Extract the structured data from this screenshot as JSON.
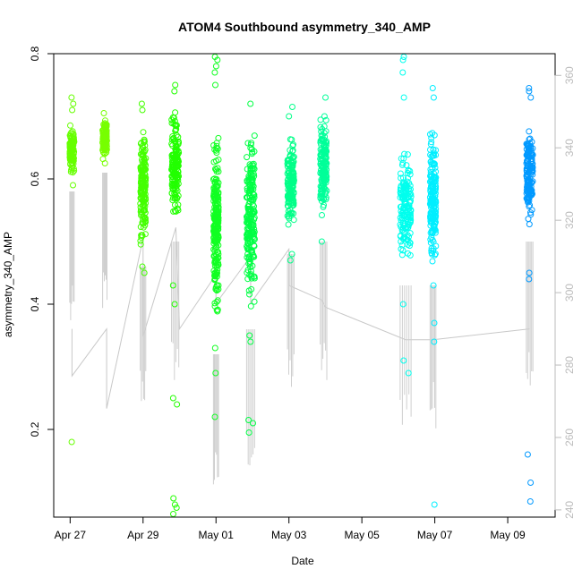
{
  "chart_data": {
    "type": "scatter",
    "title": "ATOM4 Southbound asymmetry_340_AMP",
    "xlabel": "Date",
    "ylabel": "asymmetry_340_AMP",
    "x_unit": "days since Apr 27 00:00",
    "xlim": [
      -0.45,
      13.3
    ],
    "ylim": [
      0.06,
      0.8
    ],
    "y2lim": [
      238,
      366
    ],
    "x_ticks": [
      {
        "value": 0,
        "label": "Apr 27"
      },
      {
        "value": 2,
        "label": "Apr 29"
      },
      {
        "value": 4,
        "label": "May 01"
      },
      {
        "value": 6,
        "label": "May 03"
      },
      {
        "value": 8,
        "label": "May 05"
      },
      {
        "value": 10,
        "label": "May 07"
      },
      {
        "value": 12,
        "label": "May 09"
      }
    ],
    "y_ticks": [
      {
        "value": 0.2,
        "label": "0.2"
      },
      {
        "value": 0.4,
        "label": "0.4"
      },
      {
        "value": 0.6,
        "label": "0.6"
      },
      {
        "value": 0.8,
        "label": "0.8"
      }
    ],
    "y2_ticks": [
      {
        "value": 240,
        "label": "240"
      },
      {
        "value": 260,
        "label": "260"
      },
      {
        "value": 280,
        "label": "280"
      },
      {
        "value": 300,
        "label": "300"
      },
      {
        "value": 320,
        "label": "320"
      },
      {
        "value": 340,
        "label": "340"
      },
      {
        "value": 360,
        "label": "360"
      }
    ],
    "clusters": [
      {
        "x": 0.05,
        "width": 0.12,
        "core": [
          0.6,
          0.69
        ],
        "extremes": [
          0.73,
          0.72,
          0.71,
          0.59,
          0.18
        ],
        "color": "#66ff00"
      },
      {
        "x": 0.95,
        "width": 0.12,
        "core": [
          0.63,
          0.7
        ],
        "extremes": [
          0.705,
          0.625
        ],
        "color": "#77ff00"
      },
      {
        "x": 2.0,
        "width": 0.15,
        "core": [
          0.48,
          0.7
        ],
        "extremes": [
          0.72,
          0.71,
          0.46,
          0.45
        ],
        "color": "#44ff00"
      },
      {
        "x": 2.88,
        "width": 0.2,
        "core": [
          0.52,
          0.72
        ],
        "extremes": [
          0.75,
          0.74,
          0.43,
          0.4,
          0.25,
          0.24,
          0.09,
          0.08,
          0.075,
          0.065
        ],
        "color": "#22ff00"
      },
      {
        "x": 4.0,
        "width": 0.14,
        "core": [
          0.34,
          0.7
        ],
        "extremes": [
          0.795,
          0.79,
          0.78,
          0.77,
          0.75,
          0.33,
          0.29,
          0.22
        ],
        "color": "#11ff22"
      },
      {
        "x": 4.95,
        "width": 0.22,
        "core": [
          0.38,
          0.7
        ],
        "extremes": [
          0.72,
          0.35,
          0.34,
          0.215,
          0.21,
          0.195
        ],
        "color": "#00ff44"
      },
      {
        "x": 6.05,
        "width": 0.18,
        "core": [
          0.5,
          0.69
        ],
        "extremes": [
          0.715,
          0.7,
          0.48,
          0.47
        ],
        "color": "#00ff88"
      },
      {
        "x": 6.95,
        "width": 0.18,
        "core": [
          0.52,
          0.72
        ],
        "extremes": [
          0.73,
          0.5
        ],
        "color": "#00ff99"
      },
      {
        "x": 9.2,
        "width": 0.3,
        "core": [
          0.45,
          0.66
        ],
        "extremes": [
          0.795,
          0.79,
          0.77,
          0.73,
          0.4,
          0.31,
          0.29
        ],
        "color": "#00ffee"
      },
      {
        "x": 9.95,
        "width": 0.16,
        "core": [
          0.45,
          0.7
        ],
        "extremes": [
          0.745,
          0.73,
          0.43,
          0.37,
          0.34,
          0.08
        ],
        "color": "#00eeff"
      },
      {
        "x": 12.6,
        "width": 0.18,
        "core": [
          0.52,
          0.7
        ],
        "extremes": [
          0.745,
          0.74,
          0.73,
          0.45,
          0.44,
          0.16,
          0.115,
          0.085
        ],
        "color": "#0099ff"
      }
    ],
    "secondary_series": {
      "name": "grey trace (right axis)",
      "color": "#c8c8c8",
      "points": [
        [
          0.05,
          290
        ],
        [
          0.05,
          277
        ],
        [
          1.0,
          290
        ],
        [
          1.0,
          268
        ],
        [
          2.0,
          315
        ],
        [
          2.0,
          288
        ],
        [
          2.9,
          318
        ],
        [
          3.0,
          290
        ],
        [
          4.0,
          305
        ],
        [
          4.0,
          297
        ],
        [
          4.95,
          310
        ],
        [
          4.95,
          297
        ],
        [
          6.0,
          312
        ],
        [
          6.0,
          302
        ],
        [
          6.9,
          298
        ],
        [
          7.0,
          296
        ],
        [
          9.2,
          287
        ],
        [
          9.95,
          287
        ],
        [
          12.6,
          290
        ]
      ]
    }
  }
}
